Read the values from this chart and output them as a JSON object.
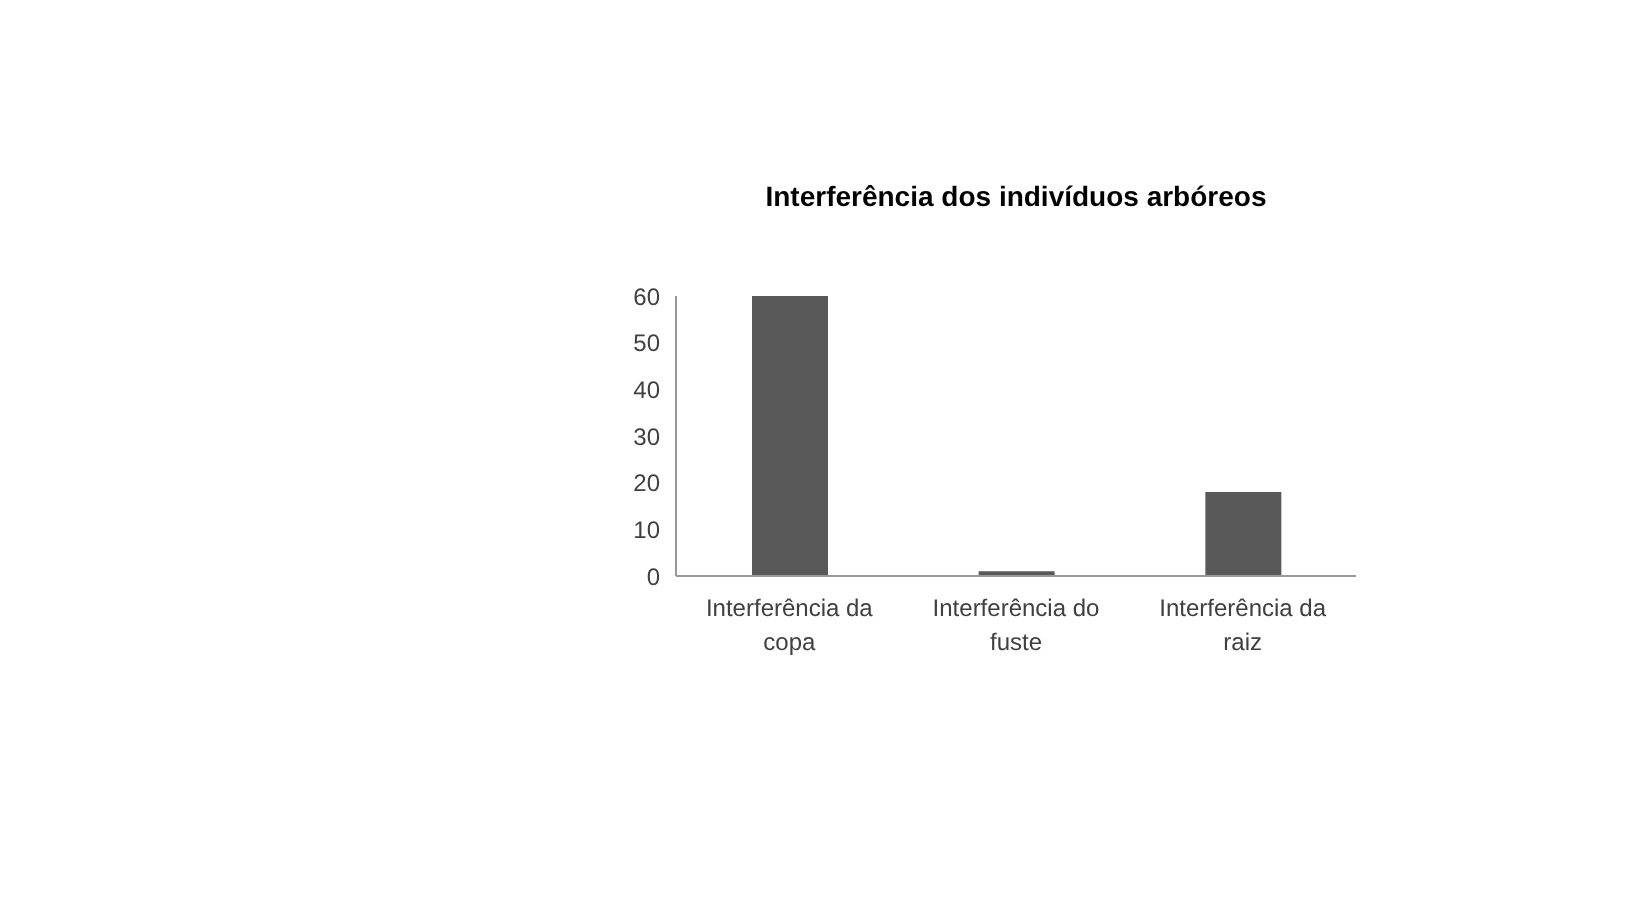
{
  "chart_data": {
    "type": "bar",
    "title": "Interferência dos indivíduos arbóreos",
    "categories": [
      "Interferência da copa",
      "Interferência do fuste",
      "Interferência da raiz"
    ],
    "values": [
      60,
      1,
      18
    ],
    "color": "#595959",
    "ylim": [
      0,
      60
    ],
    "yticks": [
      0,
      10,
      20,
      30,
      40,
      50,
      60
    ]
  }
}
